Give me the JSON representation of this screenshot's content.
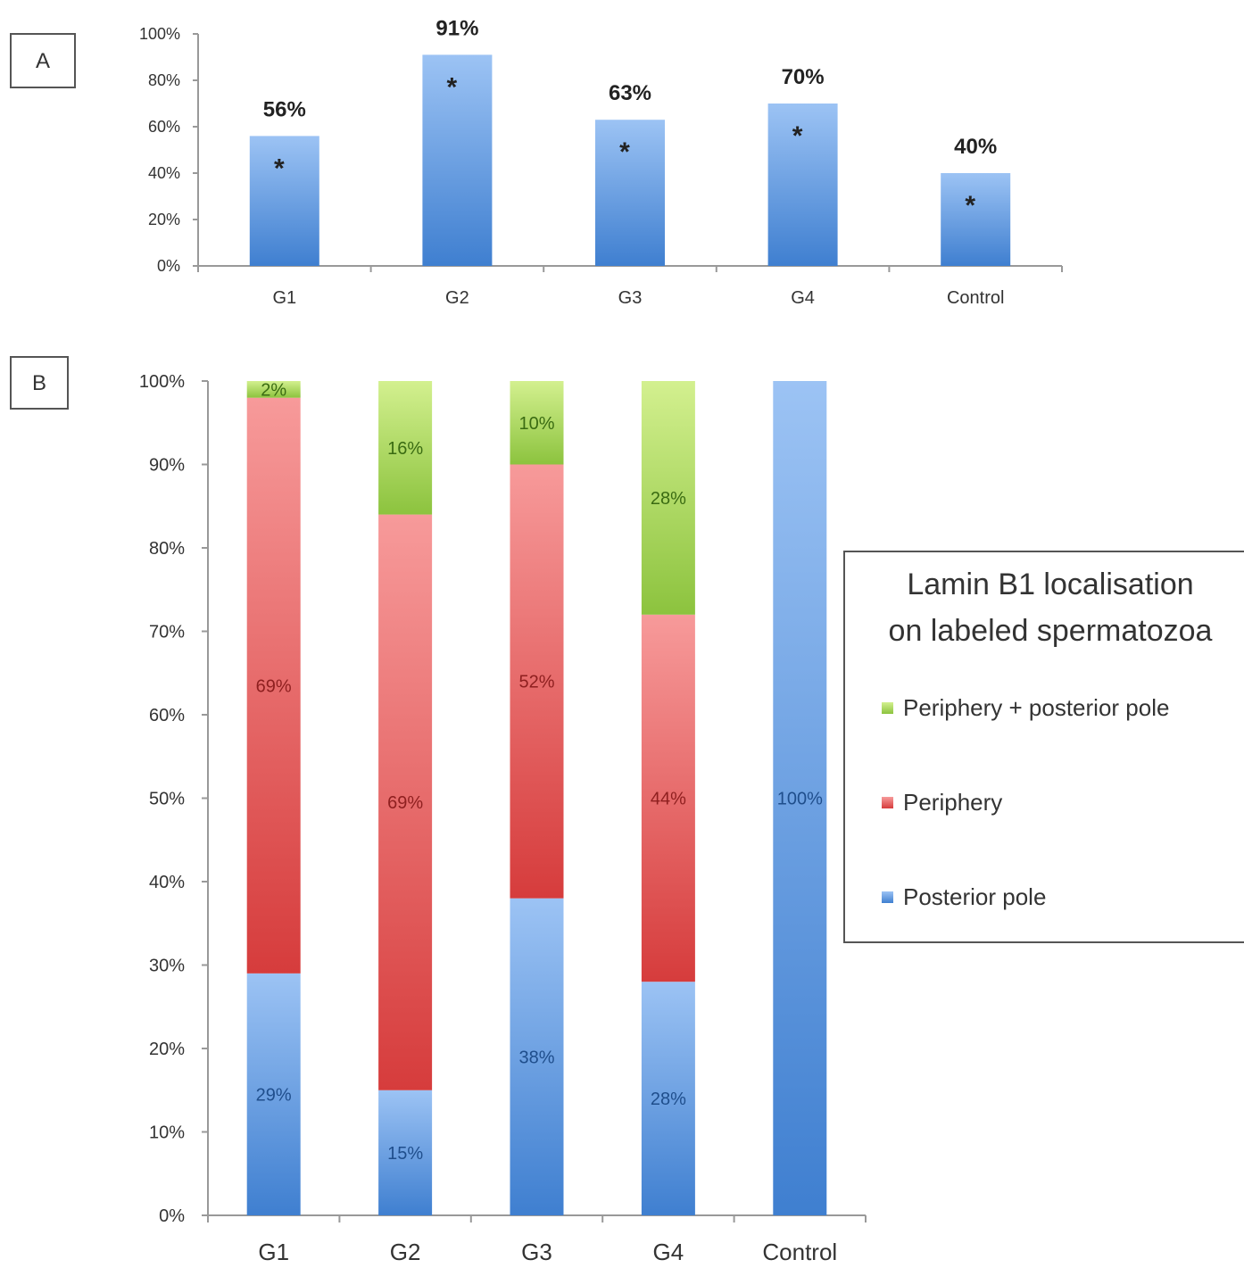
{
  "colors": {
    "blue_top": "#9cc3f4",
    "blue_bottom": "#3f7fd0",
    "red_top": "#f79a9a",
    "red_bottom": "#d63c3c",
    "green_top": "#d3f08f",
    "green_bottom": "#8cc33e"
  },
  "chart_data": [
    {
      "panel": "A",
      "type": "bar",
      "categories": [
        "G1",
        "G2",
        "G3",
        "G4",
        "Control"
      ],
      "values": [
        56,
        91,
        63,
        70,
        40
      ],
      "value_labels": [
        "56%",
        "91%",
        "63%",
        "70%",
        "40%"
      ],
      "marker": "*",
      "y_ticks": [
        "0%",
        "20%",
        "40%",
        "60%",
        "80%",
        "100%"
      ],
      "ylim": [
        0,
        100
      ],
      "grid": false
    },
    {
      "panel": "B",
      "type": "bar",
      "stacked": true,
      "categories": [
        "G1",
        "G2",
        "G3",
        "G4",
        "Control"
      ],
      "series": [
        {
          "name": "Posterior pole",
          "color": "blue",
          "values": [
            29,
            15,
            38,
            28,
            100
          ],
          "labels": [
            "29%",
            "15%",
            "38%",
            "28%",
            "100%"
          ]
        },
        {
          "name": "Periphery",
          "color": "red",
          "values": [
            69,
            69,
            52,
            44,
            0
          ],
          "labels": [
            "69%",
            "69%",
            "52%",
            "44%",
            ""
          ]
        },
        {
          "name": "Periphery + posterior pole",
          "color": "green",
          "values": [
            2,
            16,
            10,
            28,
            0
          ],
          "labels": [
            "2%",
            "16%",
            "10%",
            "28%",
            ""
          ]
        }
      ],
      "y_ticks": [
        "0%",
        "10%",
        "20%",
        "30%",
        "40%",
        "50%",
        "60%",
        "70%",
        "80%",
        "90%",
        "100%"
      ],
      "ylim": [
        0,
        100
      ],
      "grid": false,
      "legend": {
        "title_line1": "Lamin B1 localisation",
        "title_line2": "on labeled spermatozoa",
        "placement": "right",
        "entries": [
          "Periphery + posterior pole",
          "Periphery",
          "Posterior pole"
        ]
      }
    }
  ]
}
